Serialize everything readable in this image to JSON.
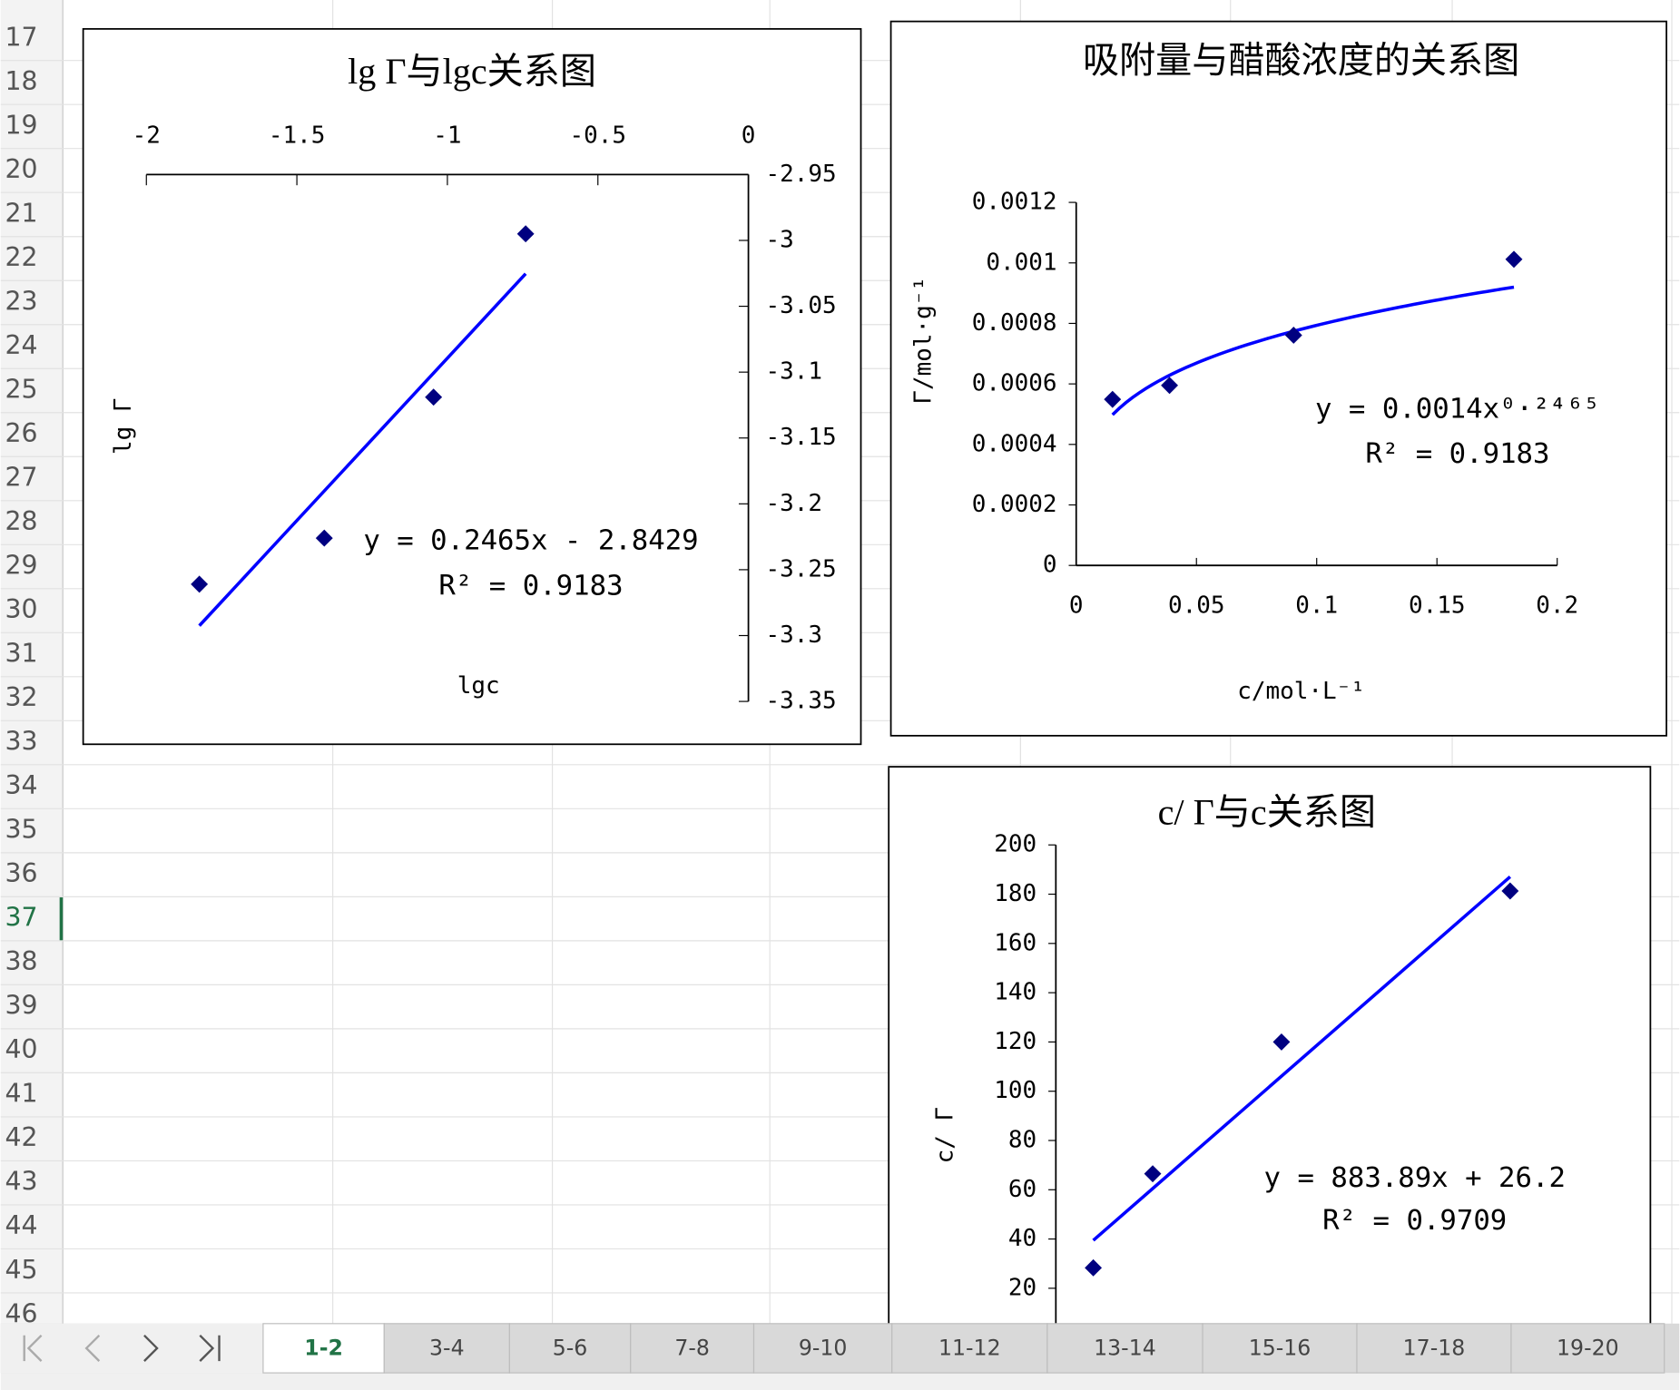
{
  "row_numbers": [
    17,
    18,
    19,
    20,
    21,
    22,
    23,
    24,
    25,
    26,
    27,
    28,
    29,
    30,
    31,
    32,
    33,
    34,
    35,
    36,
    37,
    38,
    39,
    40,
    41,
    42,
    43,
    44,
    45,
    46
  ],
  "sheet_tabs": [
    "1-2",
    "3-4",
    "5-6",
    "7-8",
    "9-10",
    "11-12",
    "13-14",
    "15-16",
    "17-18",
    "19-20"
  ],
  "chart_data": [
    {
      "type": "scatter",
      "title": "lg Γ与lgc关系图",
      "x_label": "lgc",
      "y_label": "lg Γ",
      "marker_color": "#000080",
      "x": [
        -1.824,
        -1.409,
        -1.046,
        -0.74
      ],
      "values": [
        -3.261,
        -3.226,
        -3.119,
        -2.995
      ],
      "xlim": [
        -2,
        0
      ],
      "xticks": [
        -2,
        -1.5,
        -1,
        -0.5,
        0
      ],
      "ylim": [
        -3.35,
        -2.95
      ],
      "yticks": [
        -2.95,
        -3,
        -3.05,
        -3.1,
        -3.15,
        -3.2,
        -3.25,
        -3.3,
        -3.35
      ],
      "trendline": {
        "type": "linear",
        "color": "#0000ff",
        "slope": 0.2465,
        "intercept": -2.8429,
        "equation": "y = 0.2465x - 2.8429",
        "r_squared": "R² = 0.9183"
      }
    },
    {
      "type": "scatter",
      "title": "吸附量与醋酸浓度的关系图",
      "x_label": "c/mol·L⁻¹",
      "y_label": "Γ/mol·g⁻¹",
      "marker_color": "#000080",
      "x": [
        0.0151,
        0.0388,
        0.0904,
        0.182
      ],
      "values": [
        0.000549,
        0.000595,
        0.000761,
        0.001012
      ],
      "xlim": [
        0,
        0.2
      ],
      "xticks": [
        0,
        0.05,
        0.1,
        0.15,
        0.2
      ],
      "ylim": [
        0,
        0.0012
      ],
      "yticks": [
        0,
        0.0002,
        0.0004,
        0.0006,
        0.0008,
        0.001,
        0.0012
      ],
      "trendline": {
        "type": "power",
        "color": "#0000ff",
        "coefficient": 0.0014,
        "exponent": 0.2465,
        "equation": "y = 0.0014x⁰·²⁴⁶⁵",
        "r_squared": "R² = 0.9183"
      }
    },
    {
      "type": "scatter",
      "title": "c/ Γ与c关系图",
      "y_label": "c/ Γ",
      "marker_color": "#000080",
      "x": [
        0.015,
        0.0388,
        0.0904,
        0.182
      ],
      "values": [
        28.3,
        66.5,
        120,
        181.3
      ],
      "xlim": [
        0,
        0.2
      ],
      "ylim": [
        0,
        200
      ],
      "yticks": [
        20,
        40,
        60,
        80,
        100,
        120,
        140,
        160,
        180,
        200
      ],
      "trendline": {
        "type": "linear",
        "color": "#0000ff",
        "slope": 883.89,
        "intercept": 26.2,
        "equation": "y = 883.89x + 26.2",
        "r_squared": "R² = 0.9709"
      }
    }
  ]
}
